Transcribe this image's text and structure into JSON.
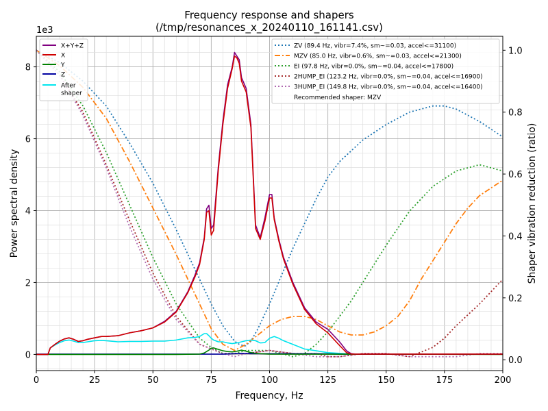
{
  "chart_data": {
    "type": "line",
    "title_line1": "Frequency response and shapers",
    "title_line2": "(/tmp/resonances_x_20240110_161141.csv)",
    "xlabel": "Frequency, Hz",
    "ylabel_left": "Power spectral density",
    "ylabel_right": "Shaper vibration reduction (ratio)",
    "left_scale_label": "1e3",
    "xlim": [
      0,
      200
    ],
    "ylim_left": [
      -0.45,
      8.85
    ],
    "ylim_right": [
      -0.035,
      1.045
    ],
    "x_ticks": [
      "0",
      "25",
      "50",
      "75",
      "100",
      "125",
      "150",
      "175",
      "200"
    ],
    "y_ticks_left": [
      "0",
      "2",
      "4",
      "6",
      "8"
    ],
    "y_ticks_right": [
      "0.0",
      "0.2",
      "0.4",
      "0.6",
      "0.8",
      "1.0"
    ],
    "x_tick_values": [
      0,
      25,
      50,
      75,
      100,
      125,
      150,
      175,
      200
    ],
    "y_tick_values_left": [
      0,
      2,
      4,
      6,
      8
    ],
    "y_tick_values_right": [
      0,
      0.2,
      0.4,
      0.6,
      0.8,
      1.0
    ],
    "grid": "major and minor",
    "psd_legend_position": "top-left",
    "shaper_legend_position": "top-right",
    "psd_series": [
      {
        "name": "X+Y+Z",
        "color": "#800080",
        "width": 1.6,
        "x": [
          0,
          5,
          6,
          8,
          10,
          12,
          14,
          16,
          18,
          20,
          22,
          25,
          28,
          30,
          35,
          40,
          45,
          50,
          55,
          60,
          65,
          68,
          70,
          72,
          73,
          74,
          75,
          76,
          78,
          80,
          82,
          84,
          85,
          86,
          87,
          88,
          90,
          92,
          94,
          96,
          98,
          100,
          101,
          102,
          104,
          106,
          110,
          115,
          120,
          125,
          130,
          133,
          135,
          137,
          140,
          150,
          160,
          170,
          180,
          190,
          200
        ],
        "y": [
          0,
          0,
          0.18,
          0.28,
          0.37,
          0.43,
          0.46,
          0.42,
          0.36,
          0.38,
          0.42,
          0.46,
          0.5,
          0.5,
          0.52,
          0.6,
          0.66,
          0.74,
          0.92,
          1.2,
          1.75,
          2.2,
          2.55,
          3.25,
          4.05,
          4.15,
          3.5,
          3.6,
          5.2,
          6.5,
          7.5,
          8.0,
          8.4,
          8.3,
          8.2,
          7.7,
          7.4,
          6.4,
          3.6,
          3.25,
          3.8,
          4.45,
          4.45,
          3.8,
          3.2,
          2.7,
          2.0,
          1.3,
          0.9,
          0.7,
          0.35,
          0.1,
          0.02,
          0.01,
          0.01,
          0.01,
          0.01,
          0.01,
          0.01,
          0.01,
          0.01
        ]
      },
      {
        "name": "X",
        "color": "#d00000",
        "width": 1.6,
        "x": [
          0,
          5,
          6,
          8,
          10,
          12,
          14,
          16,
          18,
          20,
          22,
          25,
          28,
          30,
          35,
          40,
          45,
          50,
          55,
          60,
          65,
          68,
          70,
          72,
          73,
          74,
          75,
          76,
          78,
          80,
          82,
          84,
          85,
          86,
          87,
          88,
          90,
          92,
          94,
          96,
          98,
          100,
          101,
          102,
          104,
          106,
          110,
          115,
          120,
          125,
          130,
          133,
          135,
          137,
          140,
          150,
          160,
          170,
          180,
          190,
          200
        ],
        "y": [
          0,
          0,
          0.18,
          0.28,
          0.37,
          0.43,
          0.46,
          0.42,
          0.36,
          0.38,
          0.42,
          0.46,
          0.5,
          0.5,
          0.52,
          0.6,
          0.66,
          0.74,
          0.9,
          1.18,
          1.72,
          2.15,
          2.5,
          3.2,
          3.95,
          4.0,
          3.32,
          3.45,
          5.1,
          6.4,
          7.4,
          7.95,
          8.3,
          8.25,
          8.1,
          7.6,
          7.3,
          6.3,
          3.5,
          3.2,
          3.7,
          4.35,
          4.35,
          3.75,
          3.15,
          2.65,
          1.95,
          1.25,
          0.85,
          0.6,
          0.25,
          0.05,
          0.01,
          0.01,
          0.01,
          0.01,
          0.01,
          0.01,
          0.01,
          0.01,
          0.01
        ]
      },
      {
        "name": "Y",
        "color": "#008000",
        "width": 1.6,
        "x": [
          0,
          60,
          70,
          72,
          74,
          75,
          76,
          78,
          80,
          82,
          84,
          86,
          88,
          90,
          92,
          94,
          96,
          100,
          200
        ],
        "y": [
          0,
          0,
          0.01,
          0.04,
          0.12,
          0.17,
          0.18,
          0.14,
          0.1,
          0.08,
          0.07,
          0.09,
          0.12,
          0.09,
          0.05,
          0.03,
          0.02,
          0.01,
          0
        ]
      },
      {
        "name": "Z",
        "color": "#0000a0",
        "width": 1.6,
        "x": [
          0,
          80,
          85,
          88,
          92,
          100,
          110,
          120,
          125,
          130,
          200
        ],
        "y": [
          0.01,
          0.01,
          0.02,
          0.03,
          0.02,
          0.02,
          0.02,
          0.02,
          0.015,
          0.01,
          0.01
        ]
      },
      {
        "name": "After\nshaper",
        "color": "#00e5ee",
        "width": 1.6,
        "x": [
          0,
          5,
          6,
          8,
          10,
          12,
          14,
          16,
          18,
          20,
          22,
          25,
          28,
          30,
          35,
          40,
          45,
          50,
          55,
          60,
          65,
          68,
          70,
          72,
          73,
          74,
          75,
          76,
          78,
          80,
          82,
          84,
          86,
          88,
          90,
          92,
          94,
          96,
          98,
          100,
          102,
          104,
          106,
          110,
          115,
          120,
          125,
          130,
          135,
          140,
          150,
          160,
          170,
          180,
          190,
          200
        ],
        "y": [
          0,
          0,
          0.18,
          0.26,
          0.33,
          0.38,
          0.4,
          0.37,
          0.33,
          0.33,
          0.35,
          0.38,
          0.39,
          0.38,
          0.35,
          0.36,
          0.36,
          0.37,
          0.37,
          0.4,
          0.46,
          0.47,
          0.5,
          0.58,
          0.58,
          0.52,
          0.45,
          0.4,
          0.35,
          0.35,
          0.32,
          0.3,
          0.32,
          0.35,
          0.38,
          0.4,
          0.38,
          0.32,
          0.33,
          0.45,
          0.5,
          0.45,
          0.38,
          0.28,
          0.15,
          0.1,
          0.05,
          0.03,
          0.01,
          0.01,
          0.01,
          0.01,
          0.01,
          0.01,
          0.01,
          0.01
        ]
      }
    ],
    "shaper_series": [
      {
        "name": "ZV (89.4 Hz, vibr=7.4%, sm~=0.03, accel<=31100)",
        "color": "#1f77b4",
        "dash": "2,3",
        "width": 1.8,
        "x": [
          0,
          10,
          20,
          30,
          40,
          50,
          60,
          70,
          75,
          80,
          85,
          87,
          89.4,
          92,
          95,
          100,
          105,
          110,
          115,
          120,
          125,
          130,
          140,
          150,
          160,
          170,
          175,
          180,
          190,
          200
        ],
        "y": [
          1.0,
          0.96,
          0.9,
          0.82,
          0.7,
          0.57,
          0.42,
          0.26,
          0.18,
          0.11,
          0.06,
          0.05,
          0.044,
          0.06,
          0.1,
          0.18,
          0.27,
          0.36,
          0.44,
          0.52,
          0.59,
          0.64,
          0.71,
          0.76,
          0.8,
          0.82,
          0.82,
          0.81,
          0.77,
          0.72
        ]
      },
      {
        "name": "MZV (85.0 Hz, vibr=0.6%, sm~=0.03, accel<=21300)",
        "color": "#ff7f0e",
        "dash": "8,3,2,3",
        "width": 1.8,
        "x": [
          0,
          10,
          20,
          30,
          40,
          50,
          60,
          65,
          70,
          75,
          80,
          85,
          90,
          95,
          100,
          105,
          110,
          115,
          120,
          125,
          130,
          135,
          140,
          145,
          150,
          155,
          160,
          165,
          170,
          175,
          180,
          185,
          190,
          200
        ],
        "y": [
          1.0,
          0.95,
          0.88,
          0.78,
          0.64,
          0.49,
          0.34,
          0.26,
          0.18,
          0.1,
          0.05,
          0.03,
          0.05,
          0.08,
          0.11,
          0.13,
          0.14,
          0.14,
          0.13,
          0.11,
          0.09,
          0.08,
          0.08,
          0.09,
          0.11,
          0.14,
          0.19,
          0.26,
          0.32,
          0.38,
          0.44,
          0.49,
          0.53,
          0.58
        ]
      },
      {
        "name": "EI (97.8 Hz, vibr=0.0%, sm~=0.04, accel<=17800)",
        "color": "#2ca02c",
        "dash": "2,3",
        "width": 1.8,
        "x": [
          0,
          10,
          20,
          30,
          40,
          50,
          60,
          70,
          75,
          80,
          85,
          90,
          95,
          100,
          105,
          110,
          115,
          120,
          125,
          130,
          135,
          140,
          150,
          160,
          170,
          180,
          190,
          195,
          200
        ],
        "y": [
          1.0,
          0.93,
          0.82,
          0.67,
          0.5,
          0.33,
          0.18,
          0.07,
          0.04,
          0.02,
          0.02,
          0.03,
          0.03,
          0.03,
          0.02,
          0.01,
          0.02,
          0.05,
          0.09,
          0.14,
          0.19,
          0.25,
          0.37,
          0.48,
          0.56,
          0.61,
          0.63,
          0.62,
          0.61
        ]
      },
      {
        "name": "2HUMP_EI (123.2 Hz, vibr=0.0%, sm~=0.04, accel<=16900)",
        "color": "#a52a2a",
        "dash": "2,3",
        "width": 1.8,
        "x": [
          0,
          10,
          20,
          30,
          40,
          50,
          60,
          70,
          80,
          85,
          90,
          100,
          110,
          120,
          125,
          130,
          140,
          150,
          160,
          170,
          175,
          180,
          190,
          200
        ],
        "y": [
          1.0,
          0.92,
          0.8,
          0.63,
          0.45,
          0.28,
          0.14,
          0.05,
          0.02,
          0.02,
          0.02,
          0.03,
          0.02,
          0.02,
          0.01,
          0.01,
          0.02,
          0.02,
          0.01,
          0.04,
          0.07,
          0.11,
          0.18,
          0.26
        ]
      },
      {
        "name": "3HUMP_EI (149.8 Hz, vibr=0.0%, sm~=0.04, accel<=16400)",
        "color": "#b069b0",
        "dash": "2,3",
        "width": 1.8,
        "x": [
          0,
          10,
          20,
          30,
          40,
          50,
          60,
          70,
          80,
          85,
          90,
          100,
          110,
          120,
          130,
          140,
          150,
          160,
          170,
          180,
          190,
          200
        ],
        "y": [
          1.0,
          0.92,
          0.79,
          0.62,
          0.43,
          0.26,
          0.13,
          0.05,
          0.02,
          0.01,
          0.02,
          0.03,
          0.02,
          0.01,
          0.01,
          0.02,
          0.02,
          0.01,
          0.01,
          0.01,
          0.02,
          0.02
        ]
      }
    ],
    "recommended_text": "Recommended shaper: MZV"
  }
}
